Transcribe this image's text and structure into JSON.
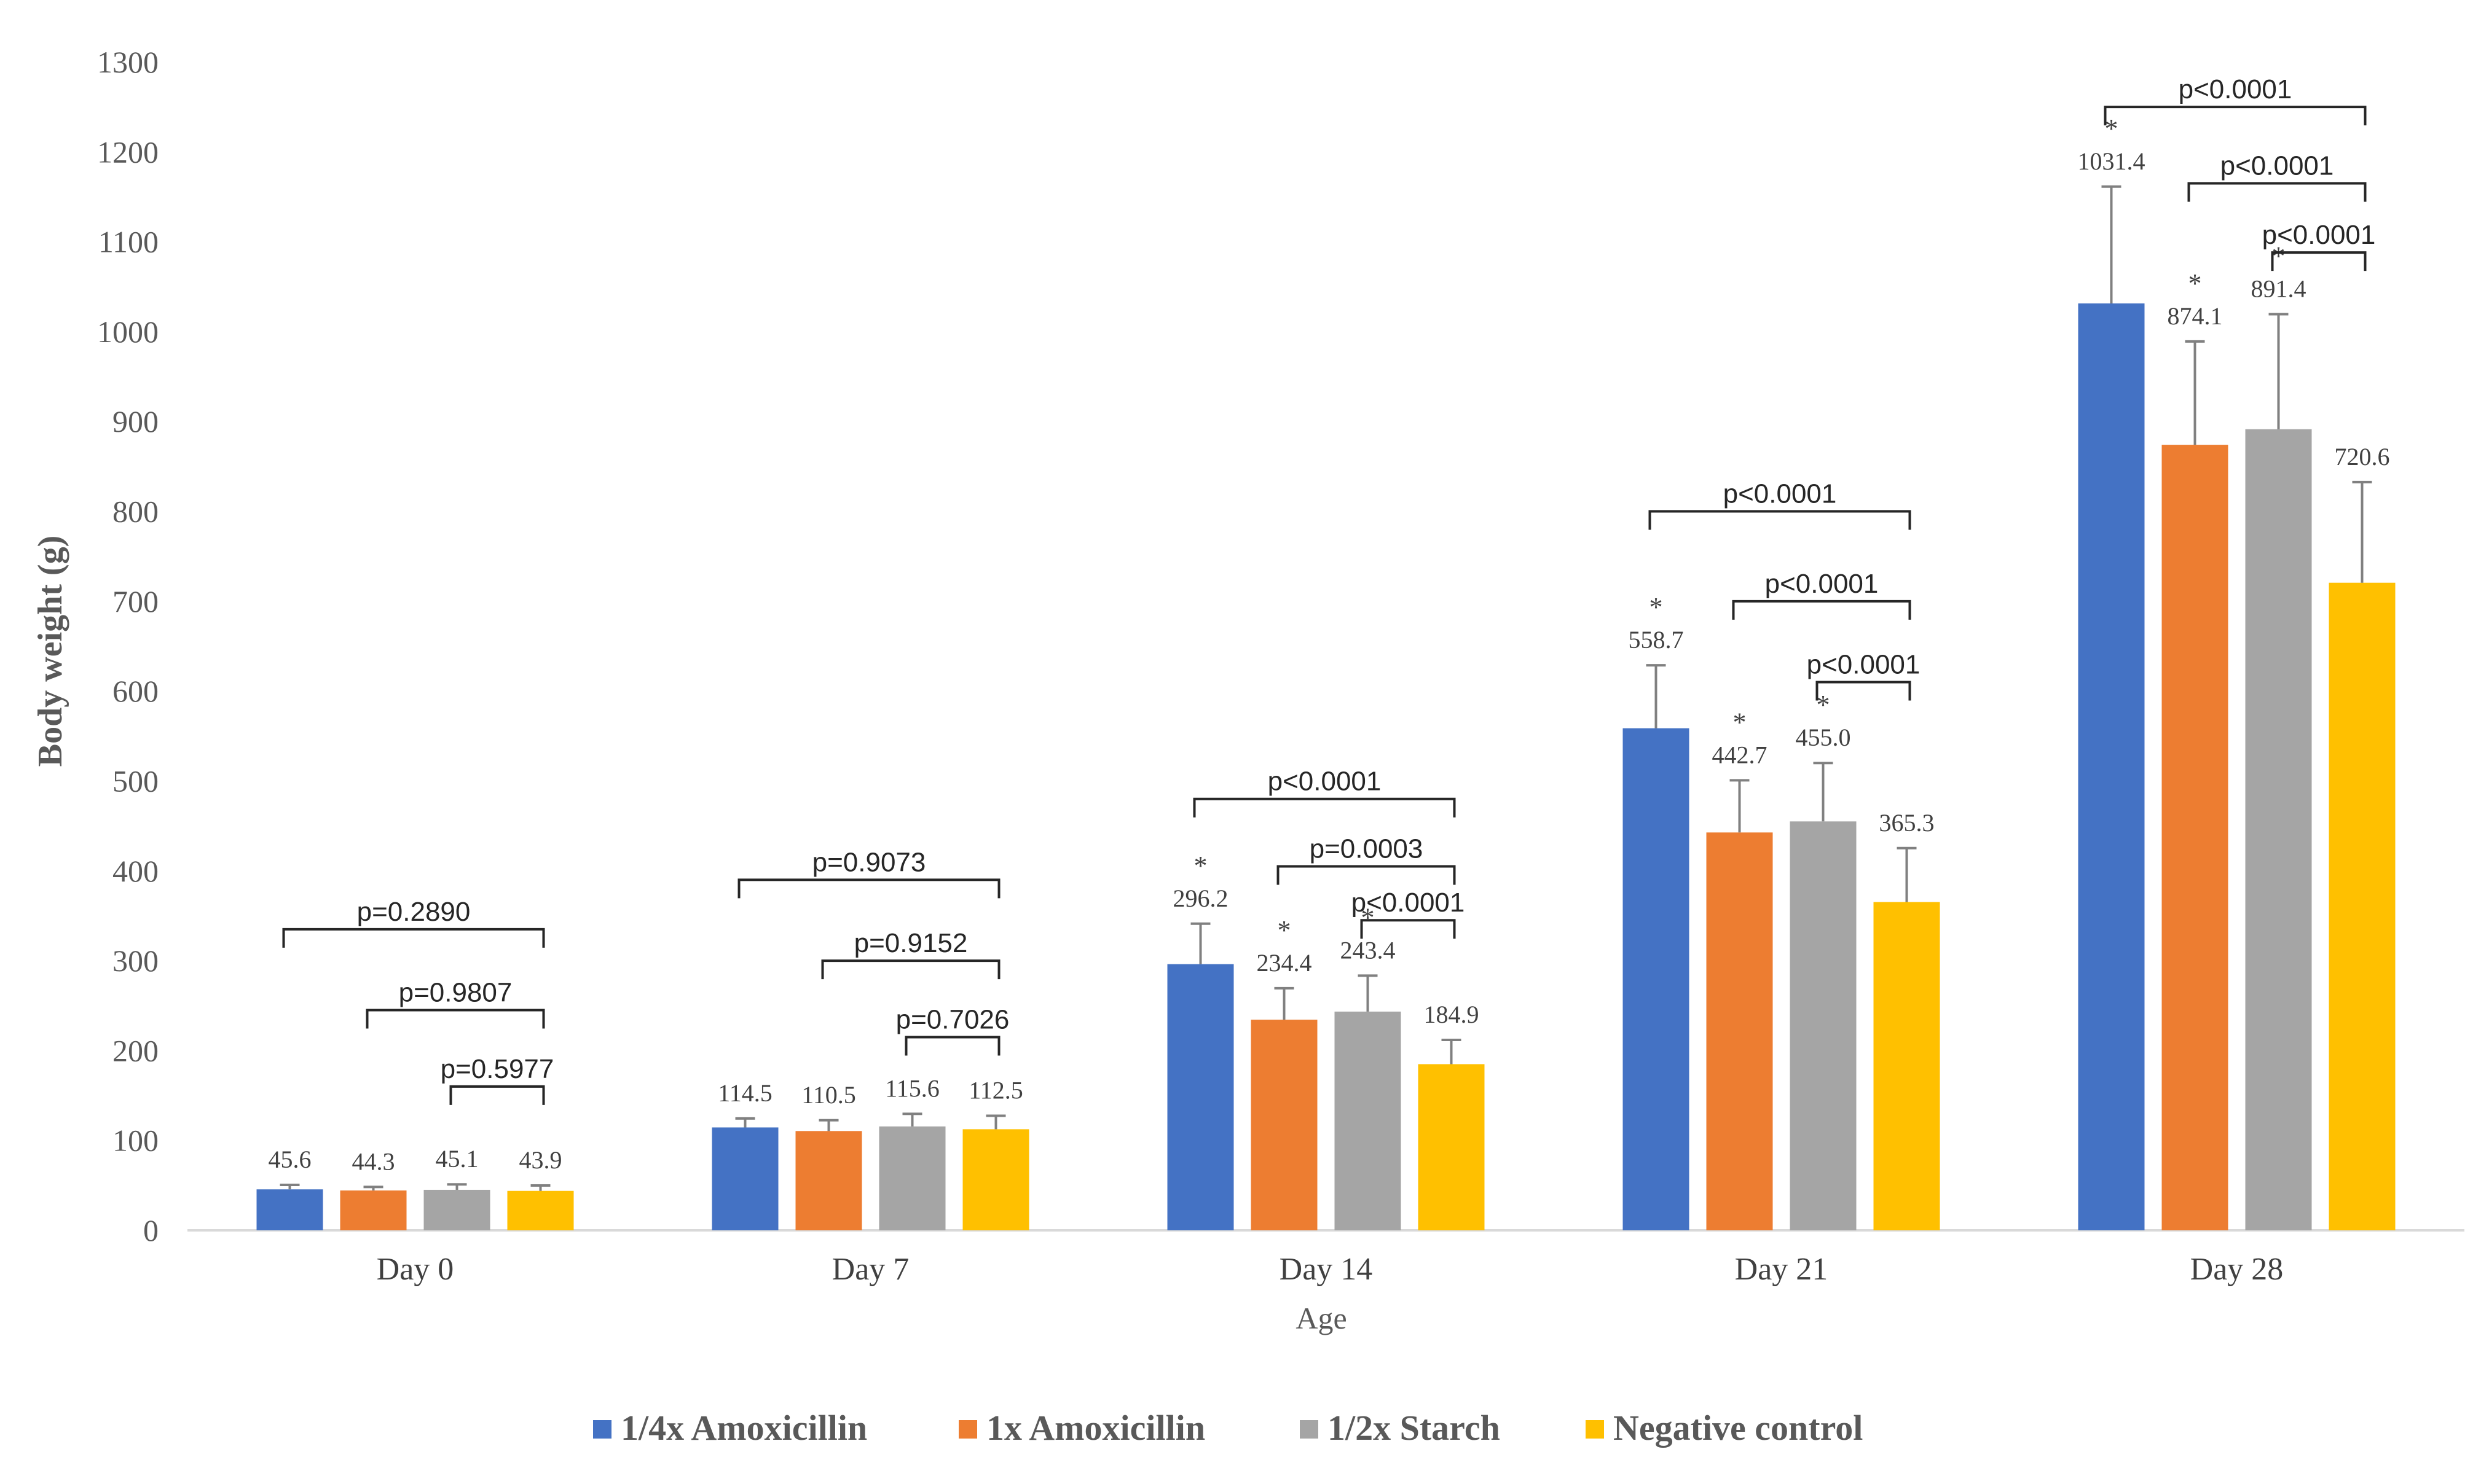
{
  "chart_data": {
    "type": "bar",
    "title": "",
    "xlabel": "Age",
    "ylabel": "Body weight (g)",
    "ylim": [
      0,
      1300
    ],
    "yticks": [
      0,
      100,
      200,
      300,
      400,
      500,
      600,
      700,
      800,
      900,
      1000,
      1100,
      1200,
      1300
    ],
    "grid": false,
    "legend_position": "bottom",
    "categories": [
      "Day 0",
      "Day 7",
      "Day 14",
      "Day 21",
      "Day 28"
    ],
    "series": [
      {
        "name": "1/4x Amoxicillin",
        "color": "#4472C4",
        "values": [
          45.6,
          114.5,
          296.2,
          558.7,
          1031.4
        ],
        "labels": [
          "45.6",
          "114.5",
          "296.2",
          "558.7",
          "1031.4"
        ],
        "errors": [
          5,
          10,
          45,
          70,
          130
        ],
        "significant": [
          false,
          false,
          true,
          true,
          true
        ]
      },
      {
        "name": "1x Amoxicillin",
        "color": "#ED7D31",
        "values": [
          44.3,
          110.5,
          234.4,
          442.7,
          874.1
        ],
        "labels": [
          "44.3",
          "110.5",
          "234.4",
          "442.7",
          "874.1"
        ],
        "errors": [
          4,
          12,
          35,
          58,
          115
        ],
        "significant": [
          false,
          false,
          true,
          true,
          true
        ]
      },
      {
        "name": "1/2x Starch",
        "color": "#A5A5A5",
        "values": [
          45.1,
          115.6,
          243.4,
          455.0,
          891.4
        ],
        "labels": [
          "45.1",
          "115.6",
          "243.4",
          "455.0",
          "891.4"
        ],
        "errors": [
          6,
          14,
          40,
          65,
          128
        ],
        "significant": [
          false,
          false,
          true,
          true,
          true
        ]
      },
      {
        "name": "Negative control",
        "color": "#FFC000",
        "values": [
          43.9,
          112.5,
          184.9,
          365.3,
          720.6
        ],
        "labels": [
          "43.9",
          "112.5",
          "184.9",
          "365.3",
          "720.6"
        ],
        "errors": [
          6,
          15,
          27,
          60,
          112
        ],
        "significant": [
          false,
          false,
          false,
          false,
          false
        ]
      }
    ],
    "comparisons": [
      {
        "category": 0,
        "from": 0,
        "to": 3,
        "label": "p=0.2890",
        "level": 335
      },
      {
        "category": 0,
        "from": 1,
        "to": 3,
        "label": "p=0.9807",
        "level": 245
      },
      {
        "category": 0,
        "from": 2,
        "to": 3,
        "label": "p=0.5977",
        "level": 160
      },
      {
        "category": 1,
        "from": 0,
        "to": 3,
        "label": "p=0.9073",
        "level": 390
      },
      {
        "category": 1,
        "from": 1,
        "to": 3,
        "label": "p=0.9152",
        "level": 300
      },
      {
        "category": 1,
        "from": 2,
        "to": 3,
        "label": "p=0.7026",
        "level": 215
      },
      {
        "category": 2,
        "from": 0,
        "to": 3,
        "label": "p<0.0001",
        "level": 480
      },
      {
        "category": 2,
        "from": 1,
        "to": 3,
        "label": "p=0.0003",
        "level": 405
      },
      {
        "category": 2,
        "from": 2,
        "to": 3,
        "label": "p<0.0001",
        "level": 345
      },
      {
        "category": 3,
        "from": 0,
        "to": 3,
        "label": "p<0.0001",
        "level": 800
      },
      {
        "category": 3,
        "from": 1,
        "to": 3,
        "label": "p<0.0001",
        "level": 700
      },
      {
        "category": 3,
        "from": 2,
        "to": 3,
        "label": "p<0.0001",
        "level": 610
      },
      {
        "category": 4,
        "from": 0,
        "to": 3,
        "label": "p<0.0001",
        "level": 1250
      },
      {
        "category": 4,
        "from": 1,
        "to": 3,
        "label": "p<0.0001",
        "level": 1165
      },
      {
        "category": 4,
        "from": 2,
        "to": 3,
        "label": "p<0.0001",
        "level": 1088
      }
    ],
    "significance_marker": "*"
  }
}
